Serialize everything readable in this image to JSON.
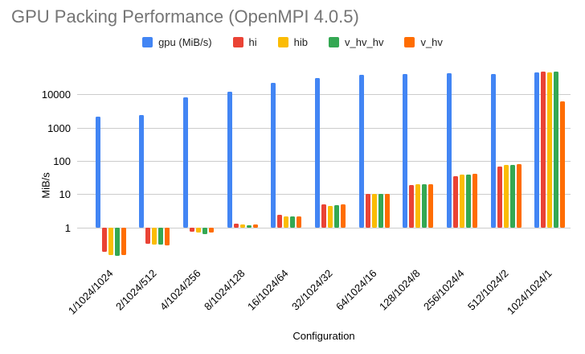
{
  "chart_data": {
    "type": "bar",
    "title": "GPU Packing Performance (OpenMPI 4.0.5)",
    "xlabel": "Configuration",
    "ylabel": "MiB/s",
    "y_scale": "log",
    "ylim": [
      0.1,
      60000
    ],
    "grid": true,
    "legend_position": "top",
    "y_tick_labels": [
      "1",
      "10",
      "100",
      "1000",
      "10000"
    ],
    "categories": [
      "1/1024/1024",
      "2/1024/512",
      "4/1024/256",
      "8/1024/128",
      "16/1024/64",
      "32/1024/32",
      "64/1024/16",
      "128/1024/8",
      "256/1024/4",
      "512/1024/2",
      "1024/1024/1"
    ],
    "series": [
      {
        "name": "gpu (MiB/s)",
        "color": "#4285F4",
        "values": [
          2100,
          2400,
          8000,
          12000,
          22000,
          30000,
          38000,
          40000,
          42000,
          40000,
          46000
        ]
      },
      {
        "name": "hi",
        "color": "#EA4335",
        "values": [
          0.18,
          0.32,
          0.73,
          1.3,
          2.4,
          5.0,
          10.3,
          19,
          35,
          68,
          47000
        ]
      },
      {
        "name": "hib",
        "color": "#FBBC04",
        "values": [
          0.15,
          0.3,
          0.7,
          1.2,
          2.1,
          4.5,
          10.0,
          20,
          38,
          77,
          45000
        ]
      },
      {
        "name": "v_hv_hv",
        "color": "#34A853",
        "values": [
          0.14,
          0.3,
          0.64,
          1.15,
          2.2,
          4.6,
          10.3,
          20,
          38,
          75,
          49000
        ]
      },
      {
        "name": "v_hv",
        "color": "#FF6D01",
        "values": [
          0.15,
          0.29,
          0.7,
          1.2,
          2.2,
          5.0,
          10.0,
          20,
          40,
          78,
          6000
        ]
      }
    ]
  },
  "colors": {
    "title_text": "#757575",
    "gridline": "#cccccc",
    "axis_text": "#000000",
    "background": "#ffffff"
  }
}
